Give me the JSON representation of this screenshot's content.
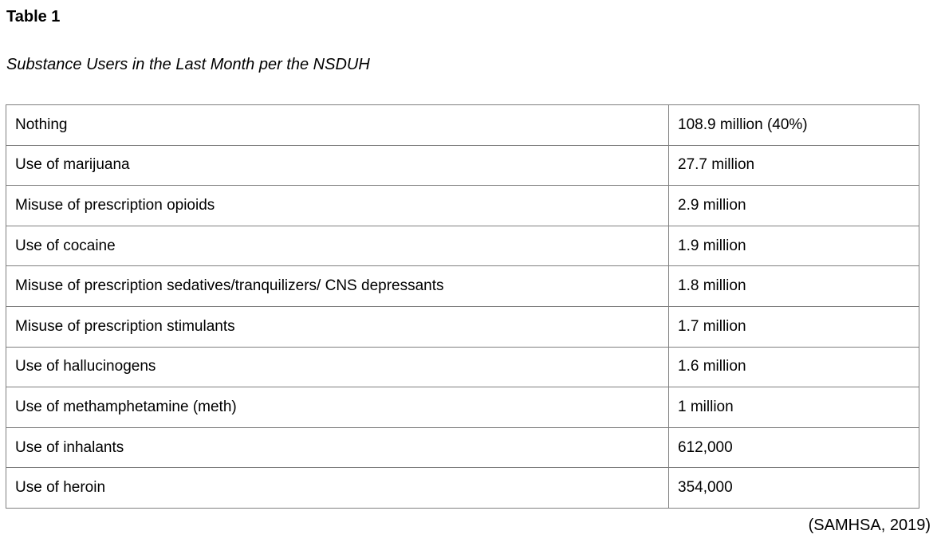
{
  "header": {
    "table_number": "Table 1",
    "title": "Substance Users in the Last Month per the NSDUH"
  },
  "table": {
    "border_color": "#7f7f7f",
    "columns": [
      "substance",
      "count"
    ],
    "rows": [
      {
        "substance": "Nothing",
        "count": "108.9 million (40%)"
      },
      {
        "substance": "Use of marijuana",
        "count": "27.7 million"
      },
      {
        "substance": "Misuse of prescription opioids",
        "count": "2.9 million"
      },
      {
        "substance": "Use of cocaine",
        "count": "1.9 million"
      },
      {
        "substance": "Misuse of prescription sedatives/tranquilizers/ CNS depressants",
        "count": "1.8 million"
      },
      {
        "substance": "Misuse of prescription stimulants",
        "count": "1.7 million"
      },
      {
        "substance": "Use of hallucinogens",
        "count": "1.6 million"
      },
      {
        "substance": "Use of methamphetamine (meth)",
        "count": "1 million"
      },
      {
        "substance": "Use of inhalants",
        "count": "612,000"
      },
      {
        "substance": "Use of heroin",
        "count": "354,000"
      }
    ]
  },
  "footer": {
    "source_citation": "(SAMHSA, 2019)"
  },
  "chart_data": {
    "type": "table",
    "title": "Substance Users in the Last Month per the NSDUH",
    "categories": [
      "Nothing",
      "Use of marijuana",
      "Misuse of prescription opioids",
      "Use of cocaine",
      "Misuse of prescription sedatives/tranquilizers/ CNS depressants",
      "Misuse of prescription stimulants",
      "Use of hallucinogens",
      "Use of methamphetamine (meth)",
      "Use of inhalants",
      "Use of heroin"
    ],
    "values": [
      108900000,
      27700000,
      2900000,
      1900000,
      1800000,
      1700000,
      1600000,
      1000000,
      612000,
      354000
    ],
    "value_labels": [
      "108.9 million (40%)",
      "27.7 million",
      "2.9 million",
      "1.9 million",
      "1.8 million",
      "1.7 million",
      "1.6 million",
      "1 million",
      "612,000",
      "354,000"
    ],
    "source": "(SAMHSA, 2019)"
  }
}
